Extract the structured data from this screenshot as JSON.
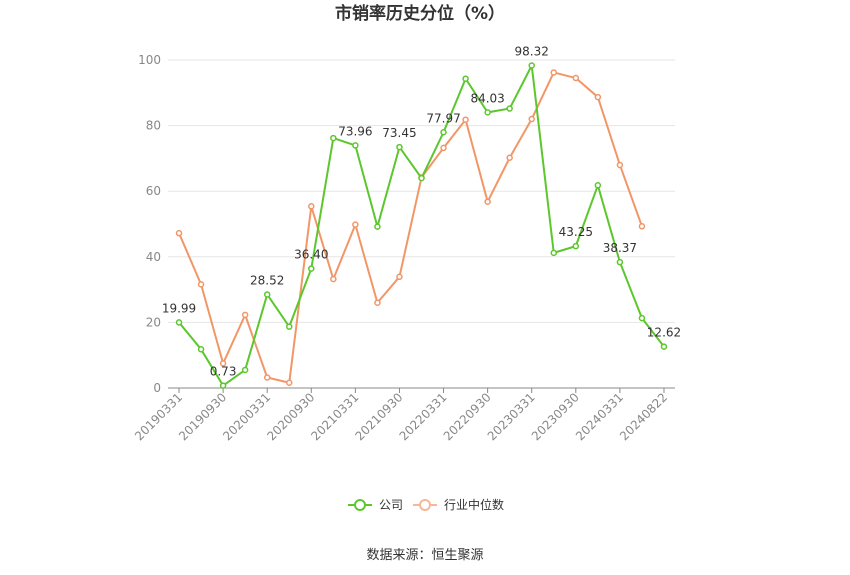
{
  "chart_data": {
    "type": "line",
    "title": "市销率历史分位（%）",
    "xlabel": "",
    "ylabel": "",
    "ylim": [
      0,
      100
    ],
    "yticks": [
      0,
      20,
      40,
      60,
      80,
      100
    ],
    "grid": true,
    "legend_position": "bottom",
    "categories": [
      "20190331",
      "20190630",
      "20190930",
      "20191231",
      "20200331",
      "20200630",
      "20200930",
      "20201231",
      "20210331",
      "20210630",
      "20210930",
      "20211231",
      "20220331",
      "20220630",
      "20220930",
      "20221231",
      "20230331",
      "20230630",
      "20230930",
      "20231231",
      "20240331",
      "20240630",
      "20240822"
    ],
    "tick_labels": [
      "20190331",
      "20190930",
      "20200331",
      "20200930",
      "20210331",
      "20210930",
      "20220331",
      "20220930",
      "20230331",
      "20230930",
      "20240331",
      "20240822"
    ],
    "series": [
      {
        "name": "公司",
        "color": "#5cc72d",
        "values": [
          19.99,
          11.8,
          0.73,
          5.5,
          28.52,
          18.7,
          36.4,
          76.2,
          73.96,
          49.2,
          73.45,
          64.0,
          77.97,
          94.3,
          84.03,
          85.2,
          98.32,
          41.2,
          43.25,
          61.8,
          38.37,
          21.3,
          12.62
        ],
        "labels": {
          "0": "19.99",
          "2": "0.73",
          "4": "28.52",
          "6": "36.40",
          "8": "73.96",
          "10": "73.45",
          "12": "77.97",
          "14": "84.03",
          "16": "98.32",
          "18": "43.25",
          "20": "38.37",
          "22": "12.62"
        }
      },
      {
        "name": "行业中位数",
        "color": "#f29668",
        "values": [
          47.2,
          31.6,
          7.5,
          22.3,
          3.2,
          1.6,
          55.4,
          33.2,
          49.8,
          26.0,
          33.9,
          64.2,
          73.2,
          81.8,
          56.8,
          70.2,
          82.0,
          96.2,
          94.5,
          88.7,
          68.0,
          49.3,
          null
        ]
      }
    ]
  },
  "legend": [
    {
      "label": "公司",
      "color": "#5cc72d"
    },
    {
      "label": "行业中位数",
      "color": "#f5b699"
    }
  ],
  "source_text": "数据来源：恒生聚源"
}
